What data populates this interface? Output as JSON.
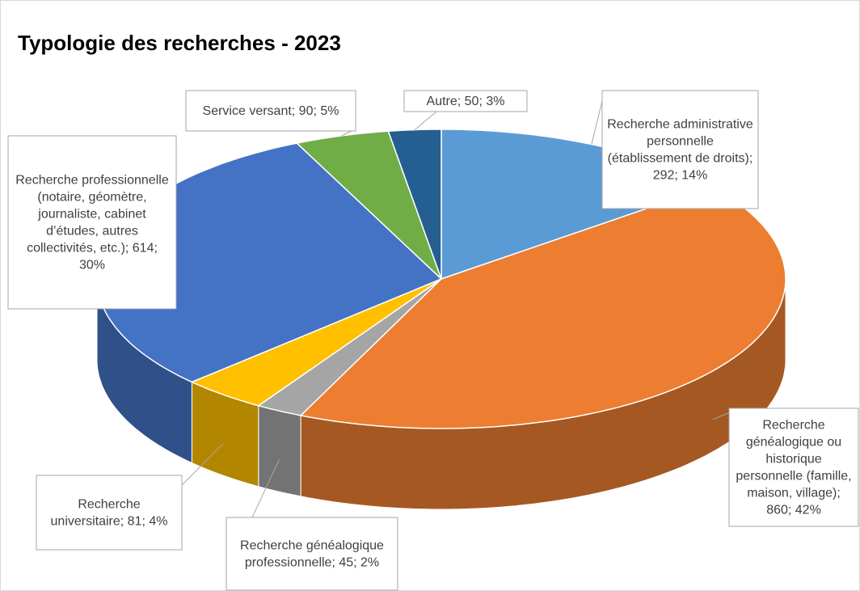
{
  "chart_data": {
    "type": "pie3d",
    "title": "Typologie des recherches - 2023",
    "values": [
      292,
      860,
      45,
      81,
      614,
      90,
      50
    ],
    "value_labels": [
      "Recherche administrative personnelle (établissement de droits); 292; 14%",
      "Recherche généalogique ou historique personnelle (famille, maison, village); 860; 42%",
      "Recherche généalogique professionnelle; 45; 2%",
      "Recherche universitaire; 81; 4%",
      "Recherche professionnelle (notaire, géomètre, journaliste, cabinet d’études, autres collectivités, etc.); 614; 30%",
      "Service versant; 90; 5%",
      "Autre; 50; 3%"
    ],
    "colors": [
      "#5b9bd5",
      "#ed7d31",
      "#a5a5a5",
      "#ffc000",
      "#4472c4",
      "#70ad47",
      "#255e91"
    ]
  }
}
